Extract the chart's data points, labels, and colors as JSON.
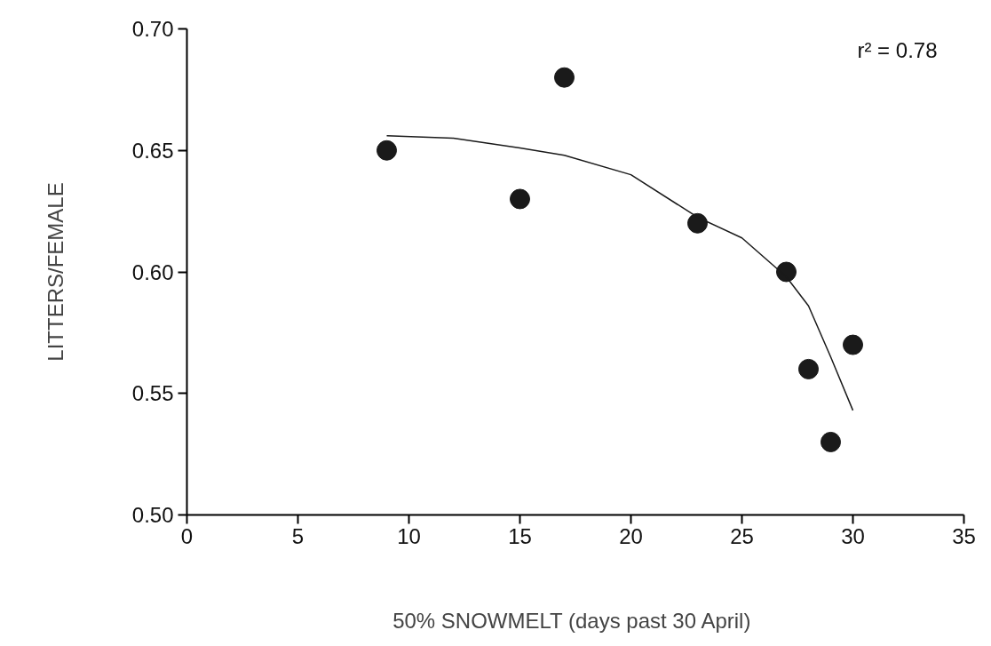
{
  "chart_data": {
    "type": "scatter",
    "xlabel": "50% SNOWMELT  (days past 30 April)",
    "ylabel": "LITTERS/FEMALE",
    "xlim": [
      0,
      35
    ],
    "xticks": [
      0,
      5,
      10,
      15,
      20,
      25,
      30,
      35
    ],
    "ylim": [
      0.5,
      0.7
    ],
    "yticks": [
      {
        "value": 0.5,
        "label": "0.50"
      },
      {
        "value": 0.55,
        "label": "0.55"
      },
      {
        "value": 0.6,
        "label": "0.60"
      },
      {
        "value": 0.65,
        "label": "0.65"
      },
      {
        "value": 0.7,
        "label": "0.70"
      }
    ],
    "grid": false,
    "annotations": [
      "r² = 0.78"
    ],
    "series": [
      {
        "marker": "circle",
        "color": "#1a1a1a",
        "x": [
          9,
          15,
          17,
          23,
          27,
          28,
          29,
          30
        ],
        "values": [
          0.65,
          0.63,
          0.68,
          0.62,
          0.6,
          0.56,
          0.53,
          0.57
        ]
      },
      {
        "type": "line",
        "color": "#1a1a1a",
        "line_style": "solid",
        "x": [
          9,
          12,
          15,
          17,
          20,
          23,
          25,
          27,
          28,
          29,
          30
        ],
        "values": [
          0.656,
          0.655,
          0.651,
          0.648,
          0.64,
          0.6225,
          0.614,
          0.598,
          0.586,
          0.565,
          0.543
        ]
      }
    ]
  }
}
